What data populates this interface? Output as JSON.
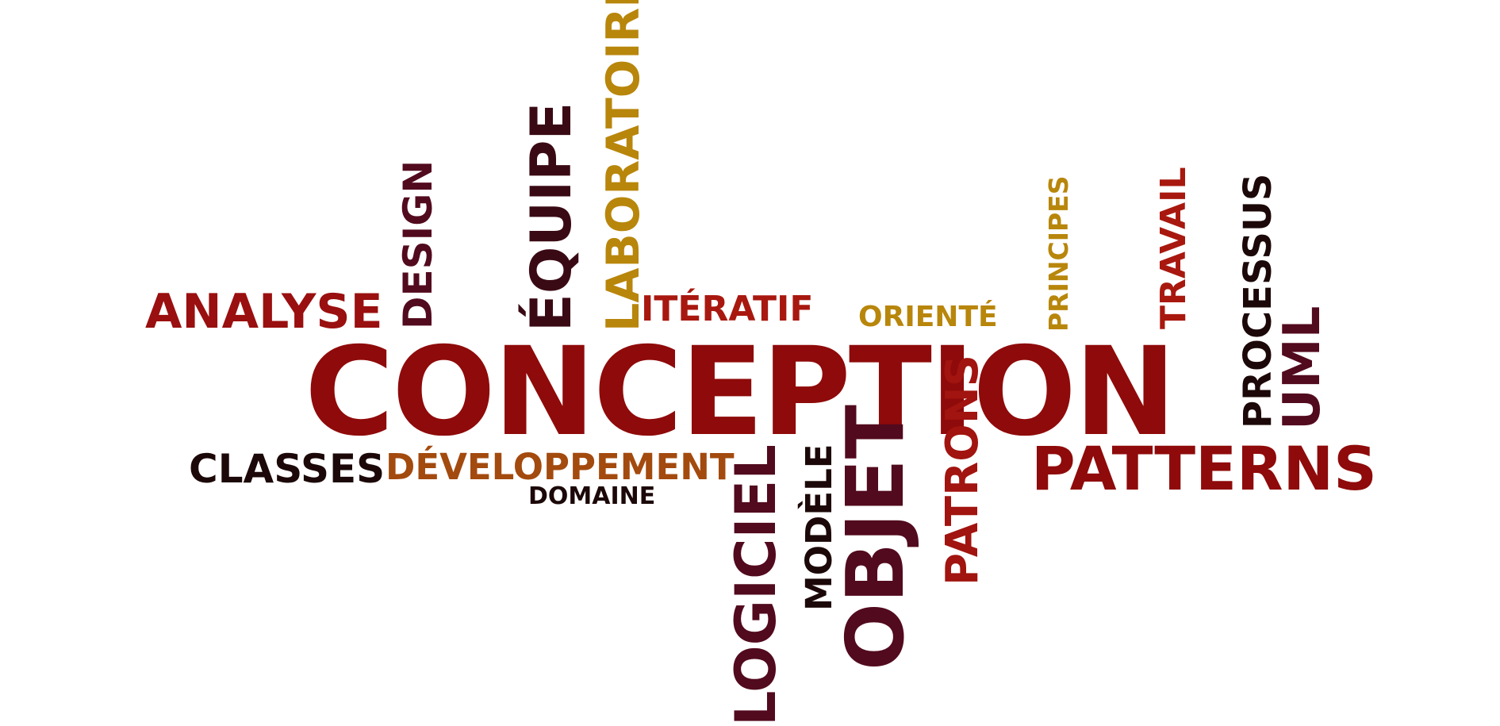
{
  "words": {
    "conception": "CONCEPTION",
    "analyse": "ANALYSE",
    "design": "DESIGN",
    "equipe": "ÉQUIPE",
    "laboratoire": "LABORATOIRE",
    "iteratif": "ITÉRATIF",
    "oriente": "ORIENTÉ",
    "principes": "PRINCIPES",
    "travail": "TRAVAIL",
    "processus": "PROCESSUS",
    "uml": "UML",
    "patterns": "PATTERNS",
    "classes": "CLASSES",
    "developpement": "DÉVELOPPEMENT",
    "domaine": "DOMAINE",
    "logiciel": "LOGICIEL",
    "modele": "MODÈLE",
    "objet": "OBJET",
    "patrons": "PATRONS"
  },
  "colors": {
    "dark_red": "#8f0a0a",
    "maroon": "#520a1e",
    "near_black": "#1c0808",
    "gold": "#b8860b",
    "rust": "#a34a0e",
    "red": "#a1140f"
  }
}
